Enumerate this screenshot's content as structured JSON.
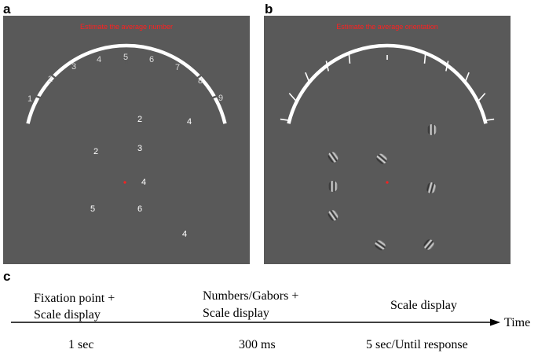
{
  "panel_labels": {
    "a": "a",
    "b": "b",
    "c": "c"
  },
  "panel_a": {
    "instruction": "Estimate the average number",
    "scale_numbers": [
      "1",
      "2",
      "3",
      "4",
      "5",
      "6",
      "7",
      "8",
      "9"
    ],
    "display_numbers": [
      "2",
      "4",
      "2",
      "3",
      "4",
      "5",
      "6",
      "4"
    ]
  },
  "panel_b": {
    "instruction": "Estimate the average orientation"
  },
  "timeline": {
    "stage1_line1": "Fixation point +",
    "stage1_line2": "Scale display",
    "stage2_line1": "Numbers/Gabors +",
    "stage2_line2": "Scale display",
    "stage3_line1": "Scale display",
    "axis_label": "Time",
    "duration1": "1 sec",
    "duration2": "300 ms",
    "duration3": "5 sec/Until response"
  },
  "colors": {
    "panel_bg": "#595959",
    "instruction": "#ff2020",
    "fixation": "#ff2020",
    "scale": "#ffffff"
  }
}
